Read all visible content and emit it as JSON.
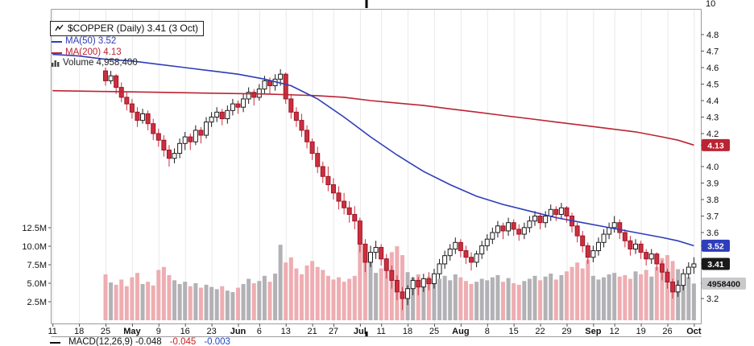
{
  "rsi_panel": {
    "axis_label": "10"
  },
  "legend": {
    "title": "$COPPER (Daily) 3.41 (3 Oct)",
    "ma50": "MA(50) 3.52",
    "ma200": "MA(200) 4.13",
    "volume": "Volume 4,958,400"
  },
  "macd_panel": {
    "main": "MACD(12,26,9) -0.048",
    "signal": "-0.045",
    "hist": "-0.003",
    "colors": {
      "main": "#111111",
      "signal": "#cc2222",
      "hist": "#2244cc"
    }
  },
  "chart_data": {
    "type": "candlestick",
    "symbol": "$COPPER",
    "period": "Daily",
    "last_close": 3.41,
    "last_date": "3 Oct",
    "overlays": [
      {
        "name": "MA(50)",
        "value": 3.52
      },
      {
        "name": "MA(200)",
        "value": 4.13
      }
    ],
    "last_volume": 4958400,
    "colors": {
      "grid": "#e9e9ed",
      "axis": "#9a9aa0",
      "tick": "#555555",
      "text": "#111111",
      "up_fill": "#ffffff",
      "up_stroke": "#1a1a1a",
      "down_fill": "#cc2f3f",
      "down_stroke": "#9c1626",
      "vol_up": "#b2b2b6",
      "vol_down": "#eeadb2",
      "ma50": "#2e3db9",
      "ma200": "#bb2433",
      "badge_last_bg": "#1a1a1a",
      "badge_vol_bg": "#c9c9cc",
      "cursor_mark": "#000000"
    },
    "price_axis": {
      "ticks": [
        "4.8",
        "4.7",
        "4.6",
        "4.5",
        "4.4",
        "4.3",
        "4.2",
        "4.0",
        "3.9",
        "3.8",
        "3.7",
        "3.6",
        "3.2"
      ],
      "badges": [
        {
          "text": "4.13",
          "anchor": "price",
          "value": 4.13,
          "bg": "#bb2433",
          "fg": "#ffffff"
        },
        {
          "text": "3.52",
          "anchor": "price",
          "value": 3.52,
          "bg": "#2e3db9",
          "fg": "#ffffff"
        },
        {
          "text": "3.41",
          "anchor": "price",
          "value": 3.41,
          "bg": "#1a1a1a",
          "fg": "#ffffff"
        },
        {
          "text": "4958400",
          "anchor": "volume",
          "value": 4.9584,
          "bg": "#c9c9cc",
          "fg": "#111111"
        }
      ]
    },
    "volume_axis": {
      "ticks": [
        {
          "label": "12.5M",
          "value": 12.5
        },
        {
          "label": "10.0M",
          "value": 10
        },
        {
          "label": "7.5M",
          "value": 7.5
        },
        {
          "label": "5.0M",
          "value": 5
        },
        {
          "label": "2.5M",
          "value": 2.5
        }
      ]
    },
    "x_axis": {
      "ticks": [
        {
          "label": "11",
          "d": -10
        },
        {
          "label": "18",
          "d": -5
        },
        {
          "label": "25",
          "d": 0
        },
        {
          "label": "May",
          "d": 5,
          "bold": true
        },
        {
          "label": "9",
          "d": 10
        },
        {
          "label": "16",
          "d": 15
        },
        {
          "label": "23",
          "d": 20
        },
        {
          "label": "Jun",
          "d": 25,
          "bold": true
        },
        {
          "label": "6",
          "d": 29
        },
        {
          "label": "13",
          "d": 34
        },
        {
          "label": "21",
          "d": 39
        },
        {
          "label": "27",
          "d": 43
        },
        {
          "label": "Jul",
          "d": 48,
          "bold": true
        },
        {
          "label": "11",
          "d": 52
        },
        {
          "label": "18",
          "d": 57
        },
        {
          "label": "25",
          "d": 62
        },
        {
          "label": "Aug",
          "d": 67,
          "bold": true
        },
        {
          "label": "8",
          "d": 72
        },
        {
          "label": "15",
          "d": 77
        },
        {
          "label": "22",
          "d": 82
        },
        {
          "label": "29",
          "d": 87
        },
        {
          "label": "Sep",
          "d": 92,
          "bold": true
        },
        {
          "label": "12",
          "d": 96
        },
        {
          "label": "19",
          "d": 101
        },
        {
          "label": "26",
          "d": 106
        },
        {
          "label": "Oct",
          "d": 111,
          "bold": true
        }
      ]
    },
    "candles": {
      "start_date": "25 Apr",
      "end_date": "3 Oct",
      "fields": [
        "open",
        "high",
        "low",
        "close",
        "volume_millions"
      ],
      "ohlcv": [
        [
          4.58,
          4.6,
          4.49,
          4.52,
          6.2
        ],
        [
          4.52,
          4.58,
          4.5,
          4.55,
          5.1
        ],
        [
          4.55,
          4.56,
          4.44,
          4.48,
          4.8
        ],
        [
          4.48,
          4.51,
          4.39,
          4.42,
          5.5
        ],
        [
          4.42,
          4.45,
          4.34,
          4.38,
          4.6
        ],
        [
          4.38,
          4.41,
          4.29,
          4.33,
          5.8
        ],
        [
          4.33,
          4.36,
          4.24,
          4.28,
          6.4
        ],
        [
          4.28,
          4.35,
          4.26,
          4.32,
          4.9
        ],
        [
          4.32,
          4.34,
          4.22,
          4.26,
          5.2
        ],
        [
          4.26,
          4.29,
          4.16,
          4.2,
          4.7
        ],
        [
          4.2,
          4.23,
          4.12,
          4.16,
          6.8
        ],
        [
          4.16,
          4.19,
          4.06,
          4.1,
          7.2
        ],
        [
          4.1,
          4.13,
          4.0,
          4.05,
          6.1
        ],
        [
          4.05,
          4.11,
          4.02,
          4.08,
          5.4
        ],
        [
          4.08,
          4.17,
          4.05,
          4.14,
          4.9
        ],
        [
          4.14,
          4.21,
          4.1,
          4.18,
          5.2
        ],
        [
          4.18,
          4.2,
          4.1,
          4.15,
          4.6
        ],
        [
          4.15,
          4.25,
          4.13,
          4.22,
          5.0
        ],
        [
          4.22,
          4.24,
          4.14,
          4.19,
          4.4
        ],
        [
          4.19,
          4.3,
          4.17,
          4.27,
          4.8
        ],
        [
          4.27,
          4.33,
          4.24,
          4.3,
          4.5
        ],
        [
          4.3,
          4.36,
          4.27,
          4.33,
          4.2
        ],
        [
          4.33,
          4.35,
          4.25,
          4.29,
          4.6
        ],
        [
          4.29,
          4.37,
          4.26,
          4.34,
          4.0
        ],
        [
          4.34,
          4.41,
          4.31,
          4.38,
          3.8
        ],
        [
          4.38,
          4.4,
          4.32,
          4.36,
          4.4
        ],
        [
          4.36,
          4.44,
          4.33,
          4.41,
          4.9
        ],
        [
          4.41,
          4.48,
          4.38,
          4.45,
          5.6
        ],
        [
          4.45,
          4.47,
          4.37,
          4.42,
          5.0
        ],
        [
          4.42,
          4.5,
          4.4,
          4.47,
          5.3
        ],
        [
          4.47,
          4.55,
          4.44,
          4.52,
          6.0
        ],
        [
          4.52,
          4.54,
          4.44,
          4.49,
          5.2
        ],
        [
          4.49,
          4.56,
          4.46,
          4.53,
          6.3
        ],
        [
          4.53,
          4.59,
          4.49,
          4.56,
          10.2
        ],
        [
          4.56,
          4.57,
          4.38,
          4.41,
          7.8
        ],
        [
          4.41,
          4.44,
          4.29,
          4.33,
          8.5
        ],
        [
          4.33,
          4.36,
          4.24,
          4.28,
          7.0
        ],
        [
          4.28,
          4.32,
          4.18,
          4.22,
          6.2
        ],
        [
          4.22,
          4.25,
          4.11,
          4.15,
          7.4
        ],
        [
          4.15,
          4.17,
          4.04,
          4.08,
          8.0
        ],
        [
          4.08,
          4.12,
          3.96,
          4.0,
          7.2
        ],
        [
          4.0,
          4.03,
          3.9,
          3.94,
          6.8
        ],
        [
          3.94,
          4.0,
          3.85,
          3.89,
          6.0
        ],
        [
          3.89,
          3.93,
          3.8,
          3.84,
          5.5
        ],
        [
          3.84,
          3.88,
          3.74,
          3.79,
          5.8
        ],
        [
          3.79,
          3.84,
          3.71,
          3.75,
          5.2
        ],
        [
          3.75,
          3.79,
          3.66,
          3.71,
          5.6
        ],
        [
          3.71,
          3.76,
          3.62,
          3.67,
          6.0
        ],
        [
          3.67,
          3.69,
          3.48,
          3.53,
          11.8
        ],
        [
          3.53,
          3.56,
          3.36,
          3.42,
          9.6
        ],
        [
          3.42,
          3.52,
          3.39,
          3.48,
          7.8
        ],
        [
          3.48,
          3.55,
          3.44,
          3.51,
          6.4
        ],
        [
          3.51,
          3.53,
          3.4,
          3.44,
          7.0
        ],
        [
          3.44,
          3.47,
          3.32,
          3.37,
          8.4
        ],
        [
          3.37,
          3.4,
          3.26,
          3.31,
          9.2
        ],
        [
          3.31,
          3.34,
          3.19,
          3.24,
          10.0
        ],
        [
          3.24,
          3.27,
          3.13,
          3.2,
          8.8
        ],
        [
          3.2,
          3.28,
          3.16,
          3.26,
          6.5
        ],
        [
          3.26,
          3.33,
          3.22,
          3.31,
          5.8
        ],
        [
          3.31,
          3.33,
          3.22,
          3.27,
          6.2
        ],
        [
          3.27,
          3.35,
          3.24,
          3.32,
          5.5
        ],
        [
          3.32,
          3.36,
          3.25,
          3.29,
          5.9
        ],
        [
          3.29,
          3.38,
          3.26,
          3.35,
          5.2
        ],
        [
          3.35,
          3.44,
          3.32,
          3.41,
          5.6
        ],
        [
          3.41,
          3.49,
          3.38,
          3.46,
          6.0
        ],
        [
          3.46,
          3.53,
          3.43,
          3.5,
          5.4
        ],
        [
          3.5,
          3.57,
          3.47,
          3.54,
          6.2
        ],
        [
          3.54,
          3.56,
          3.45,
          3.49,
          5.8
        ],
        [
          3.49,
          3.52,
          3.41,
          3.45,
          5.3
        ],
        [
          3.45,
          3.48,
          3.37,
          3.42,
          4.9
        ],
        [
          3.42,
          3.49,
          3.39,
          3.47,
          5.2
        ],
        [
          3.47,
          3.55,
          3.44,
          3.52,
          5.6
        ],
        [
          3.52,
          3.59,
          3.49,
          3.56,
          5.4
        ],
        [
          3.56,
          3.63,
          3.53,
          3.6,
          5.8
        ],
        [
          3.6,
          3.67,
          3.57,
          3.64,
          6.1
        ],
        [
          3.64,
          3.66,
          3.56,
          3.61,
          5.2
        ],
        [
          3.61,
          3.69,
          3.58,
          3.66,
          5.7
        ],
        [
          3.66,
          3.68,
          3.58,
          3.62,
          5.0
        ],
        [
          3.62,
          3.65,
          3.55,
          3.59,
          4.8
        ],
        [
          3.59,
          3.66,
          3.56,
          3.63,
          5.3
        ],
        [
          3.63,
          3.7,
          3.6,
          3.67,
          5.6
        ],
        [
          3.67,
          3.73,
          3.64,
          3.7,
          6.0
        ],
        [
          3.7,
          3.72,
          3.62,
          3.66,
          5.4
        ],
        [
          3.66,
          3.73,
          3.63,
          3.7,
          5.9
        ],
        [
          3.7,
          3.77,
          3.67,
          3.74,
          6.3
        ],
        [
          3.74,
          3.76,
          3.67,
          3.71,
          5.5
        ],
        [
          3.71,
          3.78,
          3.68,
          3.75,
          6.1
        ],
        [
          3.75,
          3.76,
          3.66,
          3.7,
          6.6
        ],
        [
          3.7,
          3.72,
          3.6,
          3.64,
          7.2
        ],
        [
          3.64,
          3.66,
          3.54,
          3.58,
          7.8
        ],
        [
          3.58,
          3.61,
          3.48,
          3.52,
          7.0
        ],
        [
          3.52,
          3.54,
          3.41,
          3.45,
          8.2
        ],
        [
          3.45,
          3.52,
          3.42,
          3.49,
          6.0
        ],
        [
          3.49,
          3.57,
          3.46,
          3.54,
          5.5
        ],
        [
          3.54,
          3.62,
          3.51,
          3.59,
          5.8
        ],
        [
          3.59,
          3.66,
          3.56,
          3.63,
          6.2
        ],
        [
          3.63,
          3.7,
          3.6,
          3.66,
          6.4
        ],
        [
          3.66,
          3.68,
          3.56,
          3.6,
          5.9
        ],
        [
          3.6,
          3.62,
          3.51,
          3.55,
          6.1
        ],
        [
          3.55,
          3.58,
          3.46,
          3.5,
          5.6
        ],
        [
          3.5,
          3.56,
          3.47,
          3.53,
          6.6
        ],
        [
          3.53,
          3.55,
          3.44,
          3.48,
          6.2
        ],
        [
          3.48,
          3.5,
          3.4,
          3.44,
          6.8
        ],
        [
          3.44,
          3.5,
          3.41,
          3.47,
          5.9
        ],
        [
          3.47,
          3.48,
          3.37,
          3.41,
          7.2
        ],
        [
          3.41,
          3.43,
          3.31,
          3.36,
          8.4
        ],
        [
          3.36,
          3.38,
          3.26,
          3.3,
          8.8
        ],
        [
          3.3,
          3.32,
          3.2,
          3.24,
          8.0
        ],
        [
          3.24,
          3.31,
          3.21,
          3.28,
          6.9
        ],
        [
          3.28,
          3.38,
          3.25,
          3.35,
          6.2
        ],
        [
          3.35,
          3.42,
          3.32,
          3.39,
          5.8
        ],
        [
          3.39,
          3.45,
          3.35,
          3.41,
          4.9584
        ]
      ]
    },
    "ma50_points": [
      [
        -10,
        4.68
      ],
      [
        -5,
        4.67
      ],
      [
        0,
        4.65
      ],
      [
        5,
        4.64
      ],
      [
        10,
        4.62
      ],
      [
        15,
        4.6
      ],
      [
        20,
        4.58
      ],
      [
        25,
        4.56
      ],
      [
        30,
        4.53
      ],
      [
        35,
        4.49
      ],
      [
        40,
        4.41
      ],
      [
        45,
        4.3
      ],
      [
        50,
        4.18
      ],
      [
        55,
        4.07
      ],
      [
        60,
        3.97
      ],
      [
        65,
        3.89
      ],
      [
        70,
        3.82
      ],
      [
        75,
        3.77
      ],
      [
        80,
        3.73
      ],
      [
        85,
        3.69
      ],
      [
        90,
        3.66
      ],
      [
        95,
        3.63
      ],
      [
        100,
        3.6
      ],
      [
        105,
        3.57
      ],
      [
        108,
        3.55
      ],
      [
        111,
        3.52
      ]
    ],
    "ma200_points": [
      [
        -10,
        4.46
      ],
      [
        0,
        4.455
      ],
      [
        10,
        4.45
      ],
      [
        20,
        4.445
      ],
      [
        30,
        4.44
      ],
      [
        40,
        4.43
      ],
      [
        45,
        4.42
      ],
      [
        50,
        4.4
      ],
      [
        55,
        4.385
      ],
      [
        60,
        4.37
      ],
      [
        65,
        4.35
      ],
      [
        70,
        4.33
      ],
      [
        75,
        4.31
      ],
      [
        80,
        4.29
      ],
      [
        85,
        4.27
      ],
      [
        90,
        4.25
      ],
      [
        95,
        4.23
      ],
      [
        100,
        4.21
      ],
      [
        105,
        4.18
      ],
      [
        108,
        4.16
      ],
      [
        111,
        4.13
      ]
    ]
  }
}
